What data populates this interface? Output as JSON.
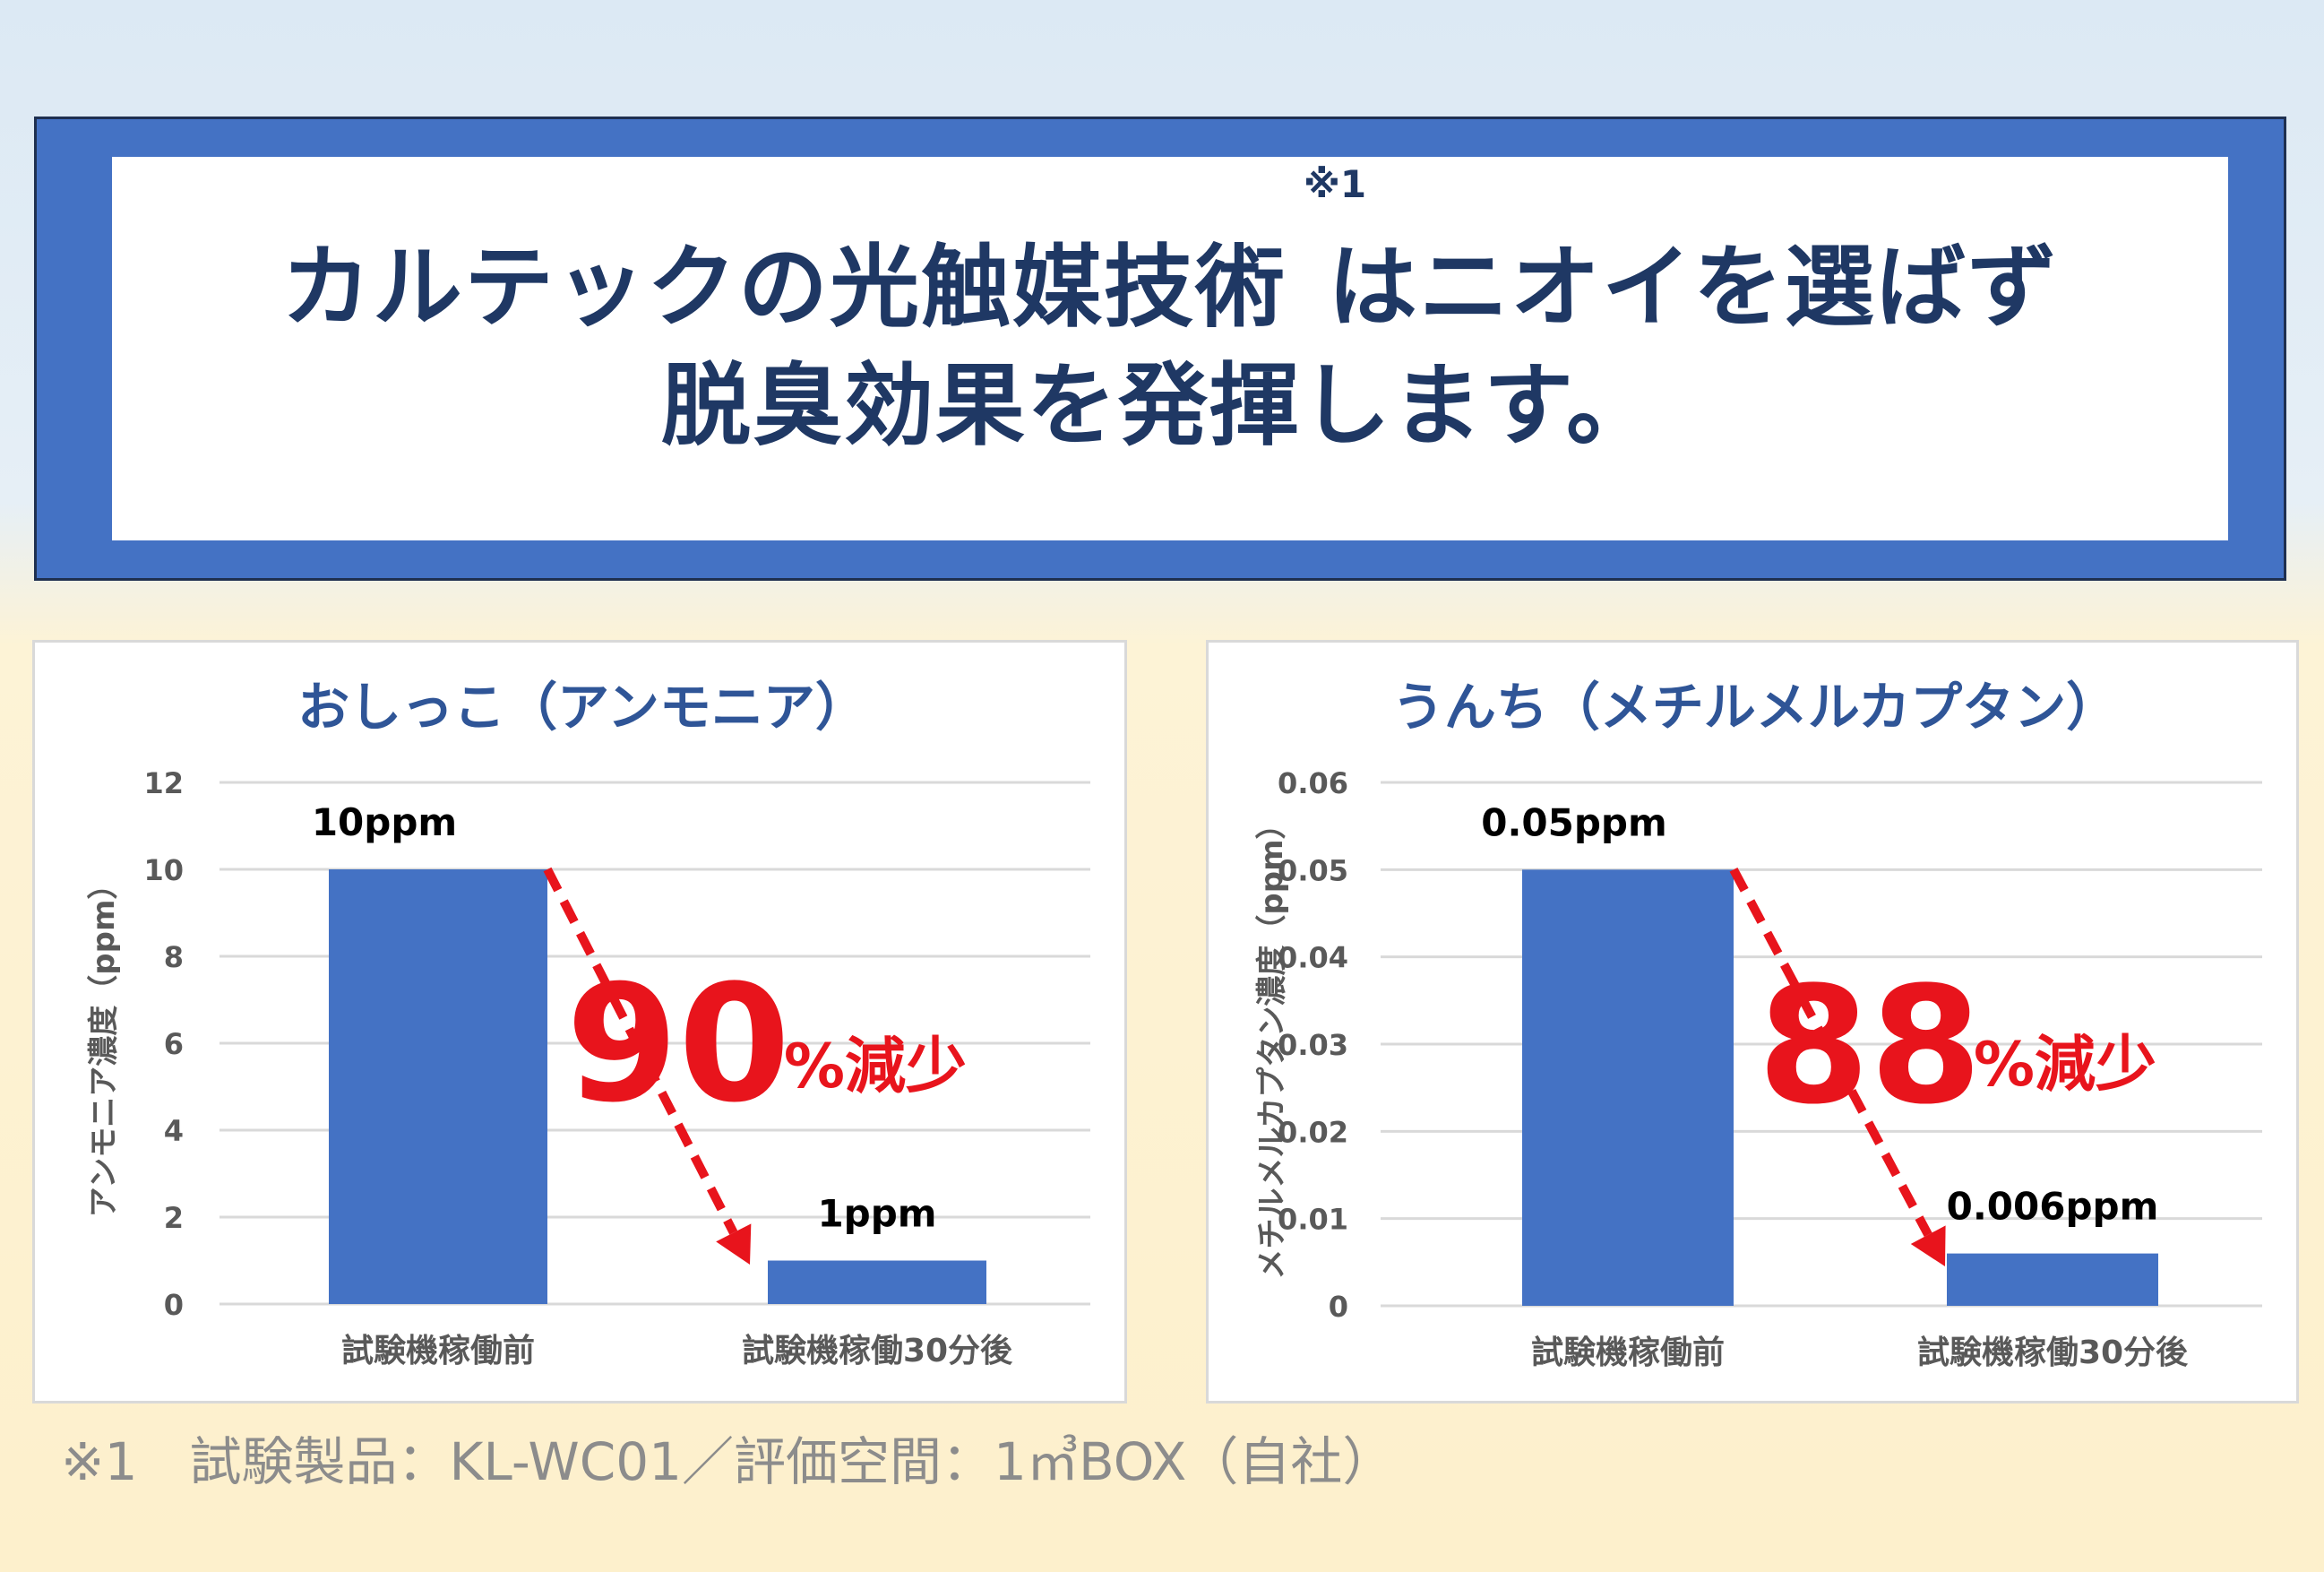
{
  "headline": {
    "line1_a": "カルテックの光触媒技術",
    "line1_b": "はニオイを選ばず",
    "line2": "脱臭効果を発揮します。",
    "ref_mark": "※1"
  },
  "footnote": "※1　試験製品：KL-WC01／評価空間：1㎥BOX（自社）",
  "colors": {
    "bar": "#4472c4",
    "arrow": "#e8141c",
    "title": "#2f5597",
    "banner": "#4472c4"
  },
  "chart_data": [
    {
      "type": "bar",
      "title": "おしっこ（アンモニア）",
      "ylabel": "アンモニア濃度（ppm）",
      "categories": [
        "試験機稼働前",
        "試験機稼働30分後"
      ],
      "values": [
        10,
        1
      ],
      "data_labels": [
        "10ppm",
        "1ppm"
      ],
      "ylim": [
        0,
        12
      ],
      "yticks": [
        0,
        2,
        4,
        6,
        8,
        10,
        12
      ],
      "ytick_labels": [
        "0",
        "2",
        "4",
        "6",
        "8",
        "10",
        "12"
      ],
      "grid": true,
      "annotation": {
        "number": "90",
        "unit": "%減少"
      }
    },
    {
      "type": "bar",
      "title": "うんち（メチルメルカプタン）",
      "ylabel": "メチルメルカプタン濃度（ppm）",
      "categories": [
        "試験機稼働前",
        "試験機稼働30分後"
      ],
      "values": [
        0.05,
        0.006
      ],
      "data_labels": [
        "0.05ppm",
        "0.006ppm"
      ],
      "ylim": [
        0,
        0.06
      ],
      "yticks": [
        0,
        0.01,
        0.02,
        0.03,
        0.04,
        0.05,
        0.06
      ],
      "ytick_labels": [
        "0",
        "0.01",
        "0.02",
        "0.03",
        "0.04",
        "0.05",
        "0.06"
      ],
      "grid": true,
      "annotation": {
        "number": "88",
        "unit": "%減少"
      }
    }
  ]
}
